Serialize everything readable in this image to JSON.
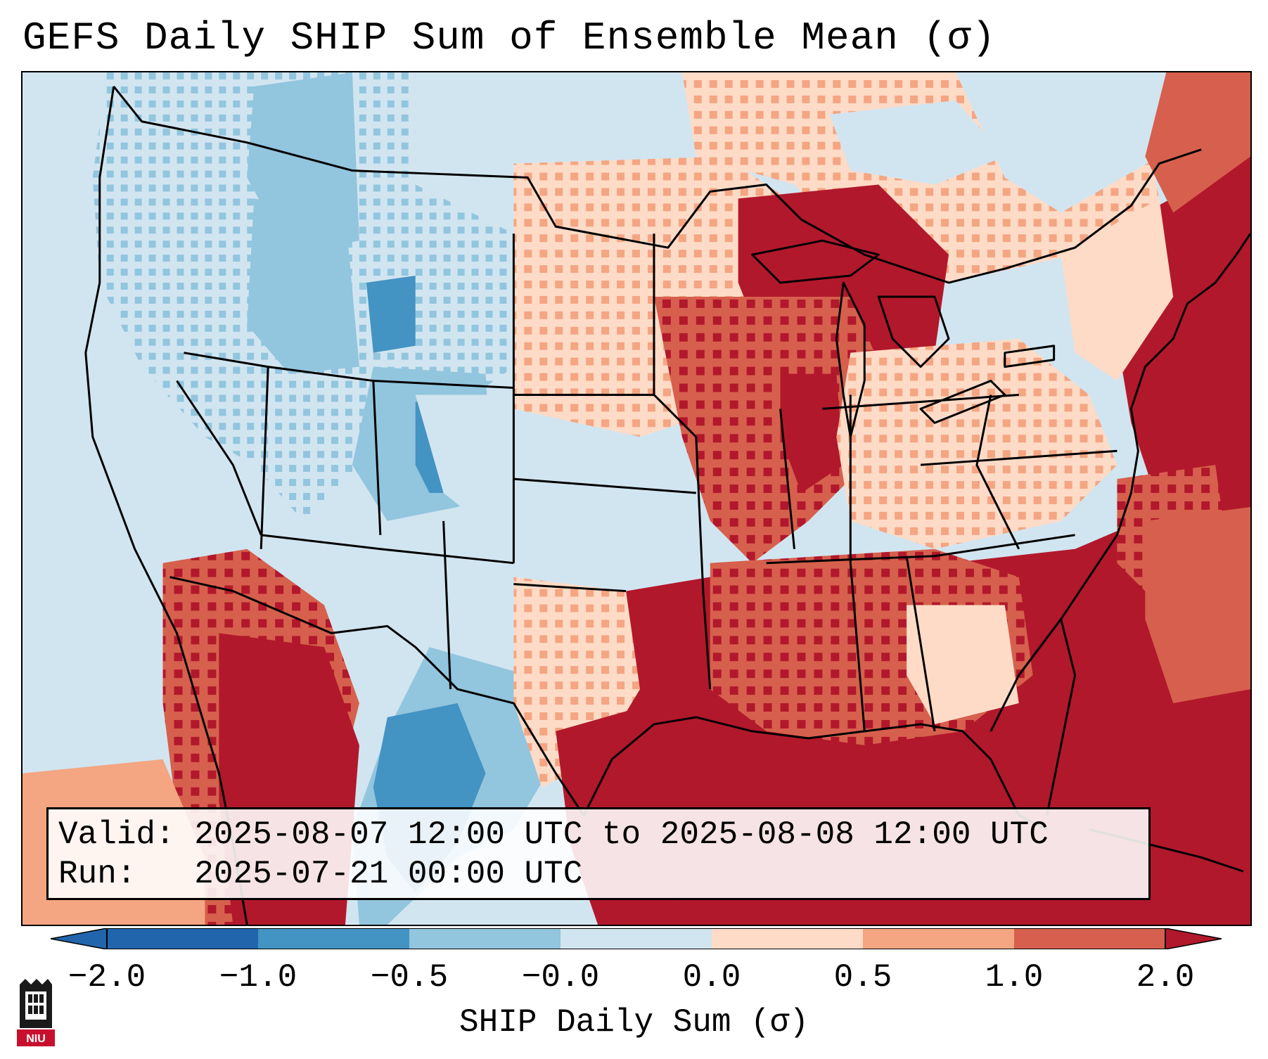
{
  "title": "GEFS Daily SHIP Sum of Ensemble Mean (σ)",
  "info": {
    "valid_label": "Valid:",
    "valid_value": "2025-08-07 12:00 UTC to 2025-08-08 12:00 UTC",
    "run_label": "Run:",
    "run_value": "2025-07-21 00:00 UTC"
  },
  "colorbar": {
    "label": "SHIP Daily Sum (σ)",
    "ticks": [
      "−2.0",
      "−1.0",
      "−0.5",
      "−0.0",
      "0.0",
      "0.5",
      "1.0",
      "2.0"
    ],
    "colors": [
      "#2166ac",
      "#4393c3",
      "#92c5de",
      "#d1e5f0",
      "#ffffff",
      "#fddbc7",
      "#f4a582",
      "#d6604d",
      "#b2182b"
    ]
  },
  "logo": {
    "text": "NIU",
    "color": "#c8102e"
  },
  "map": {
    "projection": "Lambert Conformal",
    "region": "CONUS",
    "colors": {
      "strong_neg": "#2166ac",
      "mod_neg": "#4393c3",
      "weak_neg": "#92c5de",
      "slight_neg": "#d1e5f0",
      "neutral": "#ffffff",
      "slight_pos": "#fddbc7",
      "weak_pos": "#f4a582",
      "mod_pos": "#d6604d",
      "strong_pos": "#b2182b"
    }
  }
}
